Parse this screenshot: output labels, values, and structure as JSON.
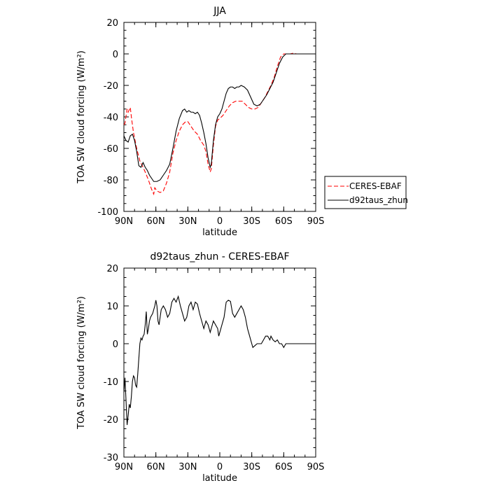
{
  "chart_data": [
    {
      "type": "line",
      "title": "JJA",
      "xlabel": "latitude",
      "ylabel": "TOA SW cloud forcing (W/m²)",
      "xlim": [
        90,
        -90
      ],
      "ylim": [
        -100,
        20
      ],
      "xticks": [
        {
          "value": 90,
          "label": "90N"
        },
        {
          "value": 60,
          "label": "60N"
        },
        {
          "value": 30,
          "label": "30N"
        },
        {
          "value": 0,
          "label": "0"
        },
        {
          "value": -30,
          "label": "30S"
        },
        {
          "value": -60,
          "label": "60S"
        },
        {
          "value": -90,
          "label": "90S"
        }
      ],
      "yticks": [
        -100,
        -80,
        -60,
        -40,
        -20,
        0,
        20
      ],
      "legend": "right",
      "series": [
        {
          "name": "CERES-EBAF",
          "color": "#ff0000",
          "dash": true,
          "points": [
            [
              90,
              -45
            ],
            [
              89,
              -44
            ],
            [
              87,
              -35
            ],
            [
              86,
              -37
            ],
            [
              84,
              -34
            ],
            [
              83,
              -40
            ],
            [
              81,
              -50
            ],
            [
              78,
              -60
            ],
            [
              75,
              -68
            ],
            [
              72,
              -72
            ],
            [
              70,
              -75
            ],
            [
              67,
              -80
            ],
            [
              64,
              -86
            ],
            [
              62,
              -89
            ],
            [
              61,
              -85
            ],
            [
              59,
              -87
            ],
            [
              56,
              -88
            ],
            [
              53,
              -87
            ],
            [
              50,
              -82
            ],
            [
              47,
              -75
            ],
            [
              44,
              -63
            ],
            [
              41,
              -55
            ],
            [
              38,
              -49
            ],
            [
              35,
              -45
            ],
            [
              32,
              -43
            ],
            [
              30,
              -43
            ],
            [
              27,
              -46
            ],
            [
              24,
              -49
            ],
            [
              21,
              -51
            ],
            [
              18,
              -55
            ],
            [
              15,
              -58
            ],
            [
              13,
              -62
            ],
            [
              11,
              -70
            ],
            [
              9,
              -75
            ],
            [
              8,
              -73
            ],
            [
              6,
              -58
            ],
            [
              4,
              -46
            ],
            [
              2,
              -42
            ],
            [
              0,
              -41
            ],
            [
              -3,
              -39
            ],
            [
              -6,
              -36
            ],
            [
              -9,
              -33
            ],
            [
              -12,
              -31
            ],
            [
              -15,
              -30
            ],
            [
              -18,
              -30
            ],
            [
              -21,
              -30
            ],
            [
              -24,
              -32
            ],
            [
              -27,
              -34
            ],
            [
              -30,
              -35
            ],
            [
              -33,
              -35
            ],
            [
              -36,
              -34
            ],
            [
              -39,
              -31
            ],
            [
              -42,
              -28
            ],
            [
              -45,
              -24
            ],
            [
              -48,
              -20
            ],
            [
              -51,
              -15
            ],
            [
              -54,
              -8
            ],
            [
              -57,
              -2
            ],
            [
              -60,
              0
            ],
            [
              -63,
              0
            ],
            [
              -66,
              0
            ],
            [
              -69,
              0.5
            ],
            [
              -72,
              0
            ],
            [
              -75,
              0
            ],
            [
              -80,
              0
            ],
            [
              -85,
              0
            ],
            [
              -90,
              0
            ]
          ]
        },
        {
          "name": "d92taus_zhun",
          "color": "#000000",
          "dash": false,
          "points": [
            [
              90,
              -52
            ],
            [
              88,
              -55
            ],
            [
              86,
              -56
            ],
            [
              84,
              -52
            ],
            [
              82,
              -51
            ],
            [
              80,
              -55
            ],
            [
              78,
              -62
            ],
            [
              76,
              -71
            ],
            [
              74,
              -72
            ],
            [
              72,
              -69
            ],
            [
              70,
              -72
            ],
            [
              68,
              -74
            ],
            [
              66,
              -77
            ],
            [
              64,
              -79
            ],
            [
              62,
              -81
            ],
            [
              59,
              -81
            ],
            [
              56,
              -80
            ],
            [
              53,
              -77
            ],
            [
              50,
              -74
            ],
            [
              47,
              -70
            ],
            [
              44,
              -60
            ],
            [
              41,
              -49
            ],
            [
              38,
              -41
            ],
            [
              35,
              -36
            ],
            [
              33,
              -35
            ],
            [
              31,
              -37
            ],
            [
              29,
              -36
            ],
            [
              27,
              -37
            ],
            [
              25,
              -37
            ],
            [
              23,
              -38
            ],
            [
              21,
              -37
            ],
            [
              19,
              -39
            ],
            [
              17,
              -44
            ],
            [
              15,
              -50
            ],
            [
              13,
              -57
            ],
            [
              11,
              -66
            ],
            [
              9,
              -72
            ],
            [
              8,
              -70
            ],
            [
              6,
              -55
            ],
            [
              4,
              -45
            ],
            [
              2,
              -40
            ],
            [
              0,
              -38
            ],
            [
              -2,
              -35
            ],
            [
              -4,
              -30
            ],
            [
              -6,
              -25
            ],
            [
              -8,
              -22
            ],
            [
              -10,
              -21
            ],
            [
              -12,
              -21
            ],
            [
              -14,
              -22
            ],
            [
              -16,
              -21
            ],
            [
              -18,
              -21
            ],
            [
              -20,
              -20
            ],
            [
              -23,
              -21
            ],
            [
              -26,
              -23
            ],
            [
              -28,
              -26
            ],
            [
              -30,
              -29
            ],
            [
              -32,
              -32
            ],
            [
              -35,
              -33
            ],
            [
              -38,
              -32
            ],
            [
              -41,
              -29
            ],
            [
              -44,
              -26
            ],
            [
              -47,
              -22
            ],
            [
              -50,
              -18
            ],
            [
              -53,
              -12
            ],
            [
              -56,
              -6
            ],
            [
              -59,
              -2
            ],
            [
              -62,
              0
            ],
            [
              -65,
              0
            ],
            [
              -70,
              0
            ],
            [
              -75,
              0
            ],
            [
              -80,
              0
            ],
            [
              -85,
              0
            ],
            [
              -90,
              0
            ]
          ]
        }
      ]
    },
    {
      "type": "line",
      "title": "d92taus_zhun - CERES-EBAF",
      "xlabel": "latitude",
      "ylabel": "TOA SW cloud forcing (W/m²)",
      "xlim": [
        90,
        -90
      ],
      "ylim": [
        -30,
        20
      ],
      "xticks": [
        {
          "value": 90,
          "label": "90N"
        },
        {
          "value": 60,
          "label": "60N"
        },
        {
          "value": 30,
          "label": "30N"
        },
        {
          "value": 0,
          "label": "0"
        },
        {
          "value": -30,
          "label": "30S"
        },
        {
          "value": -60,
          "label": "60S"
        },
        {
          "value": -90,
          "label": "90S"
        }
      ],
      "yticks": [
        -30,
        -20,
        -10,
        0,
        10,
        20
      ],
      "series": [
        {
          "color": "#000000",
          "dash": false,
          "points": [
            [
              90,
              -13
            ],
            [
              89,
              -9
            ],
            [
              88,
              -15
            ],
            [
              87,
              -21.5
            ],
            [
              86,
              -19
            ],
            [
              85,
              -16
            ],
            [
              84,
              -17
            ],
            [
              83,
              -14
            ],
            [
              82,
              -10
            ],
            [
              81,
              -8.5
            ],
            [
              80,
              -9
            ],
            [
              79,
              -11
            ],
            [
              78,
              -11.5
            ],
            [
              77,
              -8
            ],
            [
              76,
              -4
            ],
            [
              75,
              0
            ],
            [
              74,
              1.5
            ],
            [
              73,
              1
            ],
            [
              72,
              2
            ],
            [
              71,
              2.5
            ],
            [
              70,
              5
            ],
            [
              69,
              8.5
            ],
            [
              68,
              2.5
            ],
            [
              67,
              4
            ],
            [
              66,
              6
            ],
            [
              65,
              7
            ],
            [
              63,
              8
            ],
            [
              61,
              10
            ],
            [
              60,
              11.5
            ],
            [
              59,
              10
            ],
            [
              58,
              6
            ],
            [
              57,
              5
            ],
            [
              56,
              7
            ],
            [
              55,
              9
            ],
            [
              53,
              10
            ],
            [
              51,
              9
            ],
            [
              49,
              7
            ],
            [
              47,
              8
            ],
            [
              45,
              11
            ],
            [
              43,
              12
            ],
            [
              41,
              11
            ],
            [
              39,
              12.5
            ],
            [
              37,
              10
            ],
            [
              35,
              8
            ],
            [
              33,
              6
            ],
            [
              31,
              7
            ],
            [
              29,
              10
            ],
            [
              27,
              11
            ],
            [
              25,
              9
            ],
            [
              23,
              11
            ],
            [
              21,
              10.5
            ],
            [
              19,
              8
            ],
            [
              17,
              6
            ],
            [
              15,
              4
            ],
            [
              13,
              6
            ],
            [
              11,
              5
            ],
            [
              9,
              3
            ],
            [
              8,
              4
            ],
            [
              6,
              6
            ],
            [
              4,
              5
            ],
            [
              2,
              4
            ],
            [
              1,
              2
            ],
            [
              0,
              3
            ],
            [
              -2,
              5
            ],
            [
              -4,
              7
            ],
            [
              -6,
              11
            ],
            [
              -8,
              11.5
            ],
            [
              -10,
              11.2
            ],
            [
              -12,
              8
            ],
            [
              -14,
              7
            ],
            [
              -16,
              8
            ],
            [
              -18,
              9
            ],
            [
              -20,
              10
            ],
            [
              -22,
              9
            ],
            [
              -24,
              7
            ],
            [
              -26,
              4
            ],
            [
              -28,
              2
            ],
            [
              -30,
              0
            ],
            [
              -31,
              -1
            ],
            [
              -33,
              -0.5
            ],
            [
              -35,
              0
            ],
            [
              -37,
              0
            ],
            [
              -39,
              0
            ],
            [
              -41,
              1
            ],
            [
              -43,
              2
            ],
            [
              -45,
              2
            ],
            [
              -47,
              1
            ],
            [
              -48,
              2
            ],
            [
              -50,
              1
            ],
            [
              -52,
              0.5
            ],
            [
              -54,
              1
            ],
            [
              -56,
              0
            ],
            [
              -58,
              0
            ],
            [
              -60,
              -1
            ],
            [
              -62,
              0
            ],
            [
              -64,
              0
            ],
            [
              -66,
              0
            ],
            [
              -70,
              0
            ],
            [
              -75,
              0
            ],
            [
              -80,
              0
            ],
            [
              -85,
              0
            ],
            [
              -90,
              0
            ]
          ]
        }
      ]
    }
  ]
}
